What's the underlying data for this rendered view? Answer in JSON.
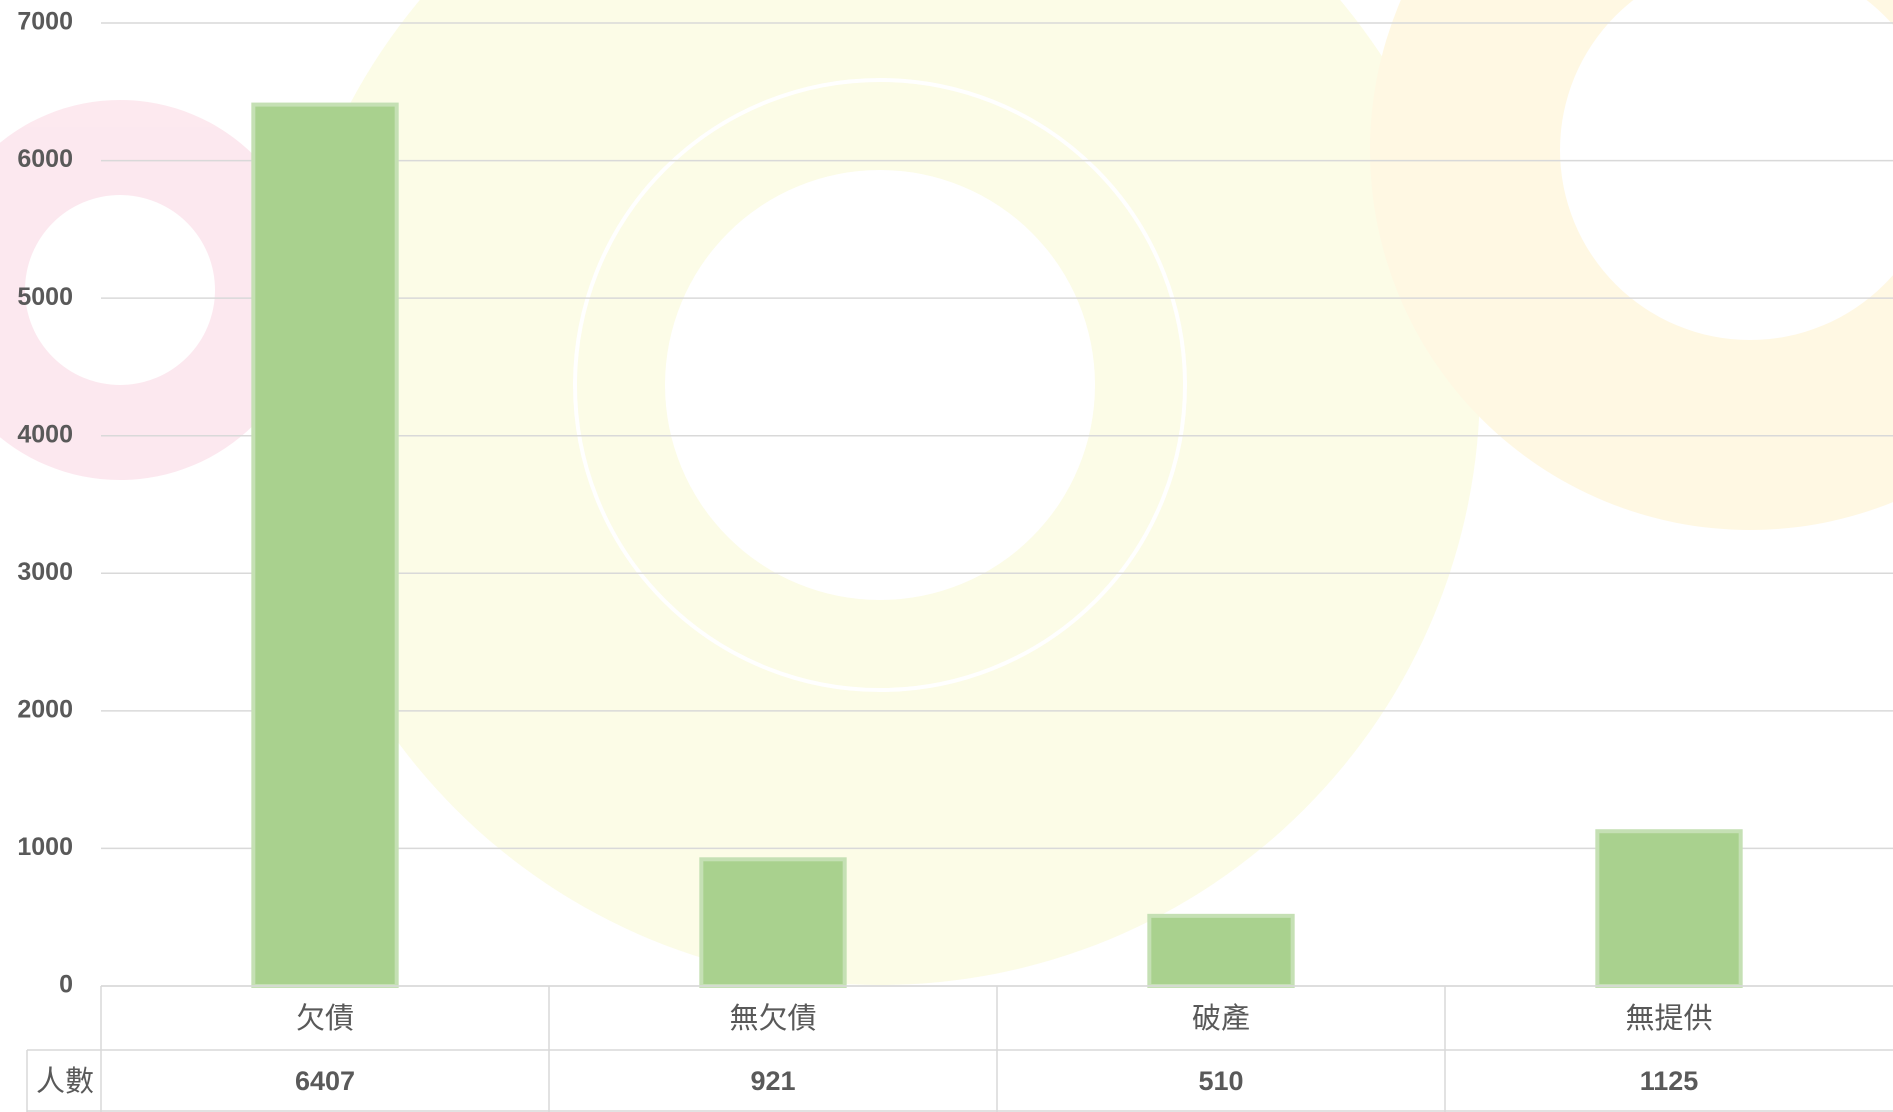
{
  "chart_data": {
    "type": "bar",
    "categories": [
      "欠債",
      "無欠債",
      "破產",
      "無提供"
    ],
    "series": [
      {
        "name": "人數",
        "color": "#a9d18e",
        "values": [
          6407,
          921,
          510,
          1125
        ]
      }
    ],
    "ylim": [
      0,
      7000
    ],
    "yticks": [
      0,
      1000,
      2000,
      3000,
      4000,
      5000,
      6000,
      7000
    ],
    "grid": true,
    "data_table": true
  }
}
